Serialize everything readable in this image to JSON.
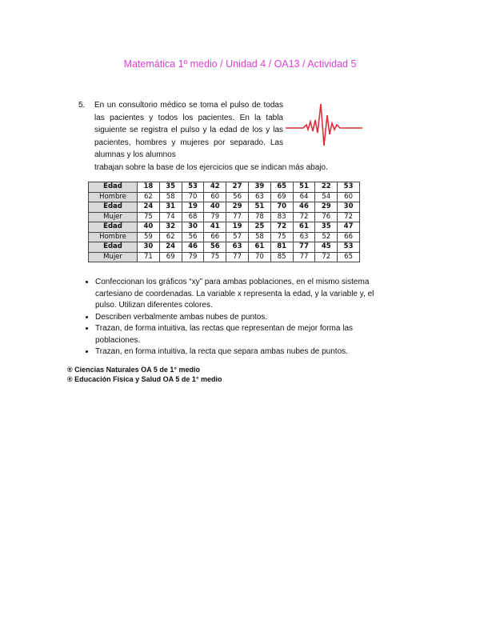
{
  "title": "Matemática 1º medio / Unidad 4 / OA13 / Actividad 5",
  "question": {
    "number": "5.",
    "text": "En un consultorio médico se toma el pulso de todas las pacientes y todos los pacientes. En la tabla siguiente se registra el pulso y la edad de los y las pacientes, hombres y mujeres por separado. Las alumnas y los alumnos",
    "text_last": "trabajan sobre la base de los ejercicios que se indican más abajo.",
    "image": "heartbeat-pulse-icon"
  },
  "table": {
    "rows": [
      {
        "label": "Edad",
        "values": [
          "18",
          "35",
          "53",
          "42",
          "27",
          "39",
          "65",
          "51",
          "22",
          "53"
        ]
      },
      {
        "label": "Hombre",
        "values": [
          "62",
          "58",
          "70",
          "60",
          "56",
          "63",
          "69",
          "64",
          "54",
          "60"
        ]
      },
      {
        "label": "Edad",
        "values": [
          "24",
          "31",
          "19",
          "40",
          "29",
          "51",
          "70",
          "46",
          "29",
          "30"
        ]
      },
      {
        "label": "Mujer",
        "values": [
          "75",
          "74",
          "68",
          "79",
          "77",
          "78",
          "83",
          "72",
          "76",
          "72"
        ]
      },
      {
        "label": "Edad",
        "values": [
          "40",
          "32",
          "30",
          "41",
          "19",
          "25",
          "72",
          "61",
          "35",
          "47"
        ]
      },
      {
        "label": "Hombre",
        "values": [
          "59",
          "62",
          "56",
          "66",
          "57",
          "58",
          "75",
          "63",
          "52",
          "66"
        ]
      },
      {
        "label": "Edad",
        "values": [
          "30",
          "24",
          "46",
          "56",
          "63",
          "61",
          "81",
          "77",
          "45",
          "53"
        ]
      },
      {
        "label": "Mujer",
        "values": [
          "71",
          "69",
          "79",
          "75",
          "77",
          "70",
          "85",
          "77",
          "72",
          "65"
        ]
      }
    ]
  },
  "bullets": [
    "Confeccionan los gráficos “xy” para ambas poblaciones, en el mismo sistema cartesiano de coordenadas. La variable x representa la edad, y la variable y, el pulso. Utilizan diferentes colores.",
    "Describen verbalmente ambas nubes de puntos.",
    "Trazan, de forma intuitiva, las rectas que representan de mejor forma las poblaciones.",
    "Trazan, en forma intuitiva, la recta que separa ambas nubes de puntos."
  ],
  "refs": [
    "® Ciencias Naturales OA 5 de 1° medio",
    "® Educación Física y Salud OA 5 de 1° medio"
  ],
  "colors": {
    "title": "#e040d8",
    "pulse": "#d9303a"
  }
}
